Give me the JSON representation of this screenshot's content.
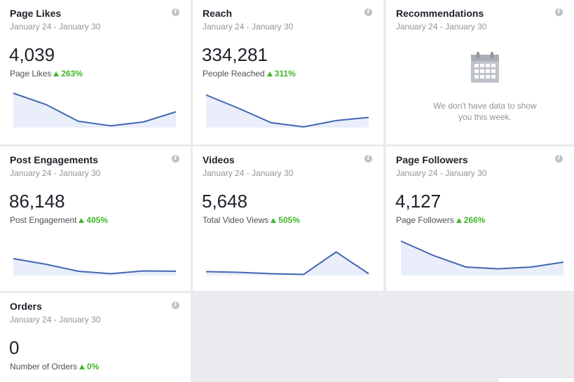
{
  "cards": [
    {
      "title": "Page Likes",
      "date": "January 24 - January 30",
      "value": "4,039",
      "sublabel": "Page Likes",
      "delta": "263%",
      "trend": [
        0.98,
        0.66,
        0.18,
        0.05,
        0.16,
        0.45
      ]
    },
    {
      "title": "Reach",
      "date": "January 24 - January 30",
      "value": "334,281",
      "sublabel": "People Reached",
      "delta": "311%",
      "trend": [
        0.93,
        0.55,
        0.14,
        0.02,
        0.2,
        0.29
      ]
    },
    {
      "title": "Recommendations",
      "date": "January 24 - January 30",
      "empty_message": "We don't have data to show you this week."
    },
    {
      "title": "Post Engagements",
      "date": "January 24 - January 30",
      "value": "86,148",
      "sublabel": "Post Engagement",
      "delta": "405%",
      "trend": [
        0.48,
        0.32,
        0.12,
        0.05,
        0.13,
        0.12
      ]
    },
    {
      "title": "Videos",
      "date": "January 24 - January 30",
      "value": "5,648",
      "sublabel": "Total Video Views",
      "delta": "505%",
      "trend": [
        0.11,
        0.09,
        0.05,
        0.03,
        0.67,
        0.05
      ]
    },
    {
      "title": "Page Followers",
      "date": "January 24 - January 30",
      "value": "4,127",
      "sublabel": "Page Followers",
      "delta": "266%",
      "trend": [
        0.98,
        0.57,
        0.24,
        0.19,
        0.24,
        0.38
      ]
    },
    {
      "title": "Orders",
      "date": "January 24 - January 30",
      "value": "0",
      "sublabel": "Number of Orders",
      "delta": "0%"
    }
  ],
  "colors": {
    "line": "#4267b2",
    "fill": "#e9eefa",
    "positive": "#42b72a",
    "background": "#e9ebee"
  },
  "icons": {
    "info": "info-icon",
    "calendar": "calendar-icon",
    "up": "up-triangle-icon"
  }
}
